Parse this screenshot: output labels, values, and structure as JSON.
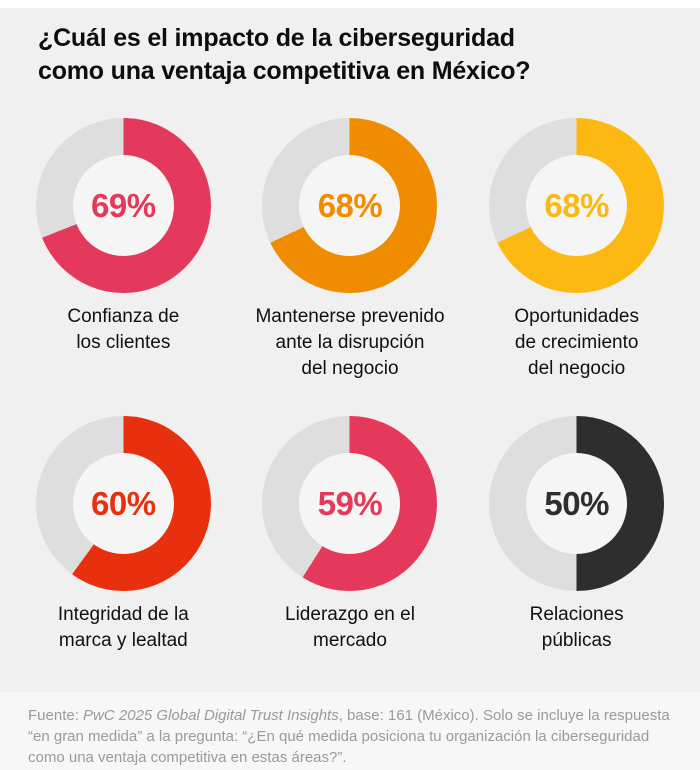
{
  "page": {
    "title_line1": "¿Cuál es el impacto de la ciberseguridad",
    "title_line2": "como una ventaja competitiva en México?"
  },
  "theme": {
    "page_background": "#f0f0f0",
    "top_strip": "#ffffff",
    "footer_background": "#f7f7f7",
    "footer_text": "#9a9a9a",
    "donut_track": "#dedede",
    "donut_hole": "#f5f5f5"
  },
  "chart_data": {
    "type": "pie",
    "variant": "donut-grid",
    "title": "¿Cuál es el impacto de la ciberseguridad como una ventaja competitiva en México?",
    "unit": "%",
    "value_range": [
      0,
      100
    ],
    "start_angle": "top-clockwise",
    "track_color": "#dedede",
    "items": [
      {
        "label": "Confianza de\nlos clientes",
        "value": 69,
        "display": "69%",
        "color": "#e4395a"
      },
      {
        "label": "Mantenerse prevenido\nante la disrupción\ndel negocio",
        "value": 68,
        "display": "68%",
        "color": "#f08c00"
      },
      {
        "label": "Oportunidades\nde crecimiento\ndel negocio",
        "value": 68,
        "display": "68%",
        "color": "#fcb813"
      },
      {
        "label": "Integridad de la\nmarca y lealtad",
        "value": 60,
        "display": "60%",
        "color": "#e8300e"
      },
      {
        "label": "Liderazgo en el\nmercado",
        "value": 59,
        "display": "59%",
        "color": "#e4395a"
      },
      {
        "label": "Relaciones\npúblicas",
        "value": 50,
        "display": "50%",
        "color": "#2e2e2e"
      }
    ]
  },
  "footer": {
    "prefix": "Fuente: ",
    "source_italic": "PwC 2025 Global Digital Trust Insights",
    "rest": ", base: 161 (México). Solo se incluye la respuesta “en gran medida” a la pregunta: “¿En qué medida posiciona tu organización la ciberseguridad como una ventaja competitiva en estas áreas?”."
  }
}
